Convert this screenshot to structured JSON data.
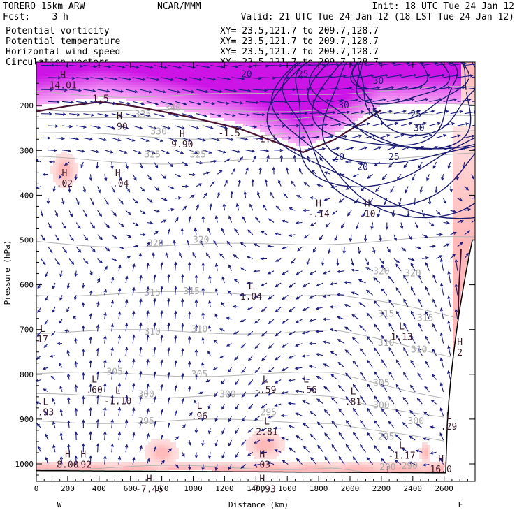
{
  "header": {
    "model": "TORERO  15km ARW",
    "center": "NCAR/MMM",
    "init": "Init: 18 UTC Tue 24 Jan 12",
    "fcst": "Fcst:    3 h",
    "valid": "Valid: 21 UTC Tue 24 Jan 12 (18 LST Tue 24 Jan 12)"
  },
  "fields": [
    {
      "name": "Potential vorticity",
      "xy": "XY=  23.5,121.7 to 209.7,128.7",
      "color": "#000000"
    },
    {
      "name": "Potential temperature",
      "xy": "XY=  23.5,121.7 to 209.7,128.7",
      "color": "#b4b4b4"
    },
    {
      "name": "Horizontal wind speed",
      "xy": "XY=  23.5,121.7 to 209.7,128.7",
      "color": "#1a1a6e"
    },
    {
      "name": "Circulation vectors",
      "xy": "XY=  23.5,121.7 to 209.7,128.7",
      "color": "#000000"
    }
  ],
  "chart_data": {
    "type": "cross-section",
    "xlabel": "Distance (km)",
    "ylabel": "Pressure (hPa)",
    "xlim": [
      0,
      2800
    ],
    "ylim_pressure": [
      1030,
      100
    ],
    "x_ticks": [
      "0",
      "200",
      "400",
      "600",
      "800",
      "1000",
      "1200",
      "1400",
      "1600",
      "1800",
      "2000",
      "2200",
      "2400",
      "2600"
    ],
    "y_ticks": [
      "200",
      "300",
      "400",
      "500",
      "600",
      "700",
      "800",
      "900",
      "1000"
    ],
    "endpoints": {
      "left": "W",
      "right": "E"
    },
    "theta_labels": [
      {
        "text": "340",
        "x": 870,
        "p": 205
      },
      {
        "text": "335",
        "x": 680,
        "p": 220
      },
      {
        "text": "330",
        "x": 780,
        "p": 258
      },
      {
        "text": "325",
        "x": 740,
        "p": 310
      },
      {
        "text": "325",
        "x": 1030,
        "p": 310
      },
      {
        "text": "320",
        "x": 760,
        "p": 508
      },
      {
        "text": "320",
        "x": 1050,
        "p": 500
      },
      {
        "text": "320",
        "x": 2200,
        "p": 570
      },
      {
        "text": "320",
        "x": 2400,
        "p": 575
      },
      {
        "text": "315",
        "x": 740,
        "p": 618
      },
      {
        "text": "315",
        "x": 990,
        "p": 615
      },
      {
        "text": "315",
        "x": 2230,
        "p": 665
      },
      {
        "text": "315",
        "x": 2480,
        "p": 675
      },
      {
        "text": "310",
        "x": 740,
        "p": 705
      },
      {
        "text": "310",
        "x": 1040,
        "p": 700
      },
      {
        "text": "310",
        "x": 2230,
        "p": 730
      },
      {
        "text": "310",
        "x": 2440,
        "p": 745
      },
      {
        "text": "305",
        "x": 500,
        "p": 795
      },
      {
        "text": "305",
        "x": 1040,
        "p": 800
      },
      {
        "text": "305",
        "x": 2200,
        "p": 820
      },
      {
        "text": "300",
        "x": 700,
        "p": 845
      },
      {
        "text": "300",
        "x": 1220,
        "p": 845
      },
      {
        "text": "300",
        "x": 2200,
        "p": 870
      },
      {
        "text": "300",
        "x": 2420,
        "p": 905
      },
      {
        "text": "295",
        "x": 700,
        "p": 905
      },
      {
        "text": "295",
        "x": 1480,
        "p": 885
      },
      {
        "text": "295",
        "x": 2230,
        "p": 940
      },
      {
        "text": "290",
        "x": 2240,
        "p": 1008
      },
      {
        "text": "290",
        "x": 2380,
        "p": 1005
      }
    ],
    "speed_labels": [
      {
        "text": "20",
        "x": 1340,
        "p": 130
      },
      {
        "text": "25",
        "x": 1700,
        "p": 130
      },
      {
        "text": "30",
        "x": 2180,
        "p": 145
      },
      {
        "text": "30",
        "x": 1960,
        "p": 200
      },
      {
        "text": "15",
        "x": 2140,
        "p": 215
      },
      {
        "text": "25",
        "x": 2420,
        "p": 220
      },
      {
        "text": "30",
        "x": 2440,
        "p": 250
      },
      {
        "text": "20",
        "x": 1930,
        "p": 315
      },
      {
        "text": "25",
        "x": 2280,
        "p": 315
      },
      {
        "text": "20",
        "x": 2080,
        "p": 338
      }
    ],
    "pv_labels": [
      {
        "text": "1.5",
        "x": 410,
        "p": 185
      },
      {
        "text": "-1.5",
        "x": 1230,
        "p": 262
      },
      {
        "text": "-1.5",
        "x": 1460,
        "p": 275
      }
    ],
    "extrema": [
      {
        "kind": "H",
        "value": "14.01",
        "x": 170,
        "p": 138
      },
      {
        "kind": "H",
        "value": ".02",
        "x": 180,
        "p": 357
      },
      {
        "kind": "H",
        "value": "-.04",
        "x": 520,
        "p": 357
      },
      {
        "kind": "H",
        "value": "9.90",
        "x": 930,
        "p": 270
      },
      {
        "kind": "H",
        "value": ".90",
        "x": 530,
        "p": 230
      },
      {
        "kind": "H",
        "value": "-.14",
        "x": 1800,
        "p": 425
      },
      {
        "kind": "H",
        "value": ".10",
        "x": 2110,
        "p": 425
      },
      {
        "kind": "L",
        "value": "1.04",
        "x": 1370,
        "p": 610
      },
      {
        "kind": "L",
        "value": "17",
        "x": 40,
        "p": 705
      },
      {
        "kind": "L",
        "value": "1.13",
        "x": 2330,
        "p": 700
      },
      {
        "kind": "H",
        "value": "2",
        "x": 2700,
        "p": 735
      },
      {
        "kind": "L",
        "value": ".60",
        "x": 370,
        "p": 818
      },
      {
        "kind": "L",
        "value": "-1.10",
        "x": 520,
        "p": 843
      },
      {
        "kind": "L",
        "value": "-.59",
        "x": 1460,
        "p": 818
      },
      {
        "kind": "L",
        "value": "-.56",
        "x": 1720,
        "p": 818
      },
      {
        "kind": "L",
        "value": ".81",
        "x": 2020,
        "p": 845
      },
      {
        "kind": "L",
        "value": ".96",
        "x": 1040,
        "p": 877
      },
      {
        "kind": "L",
        "value": ".93",
        "x": 60,
        "p": 868
      },
      {
        "kind": "L",
        "value": "2.81",
        "x": 1470,
        "p": 912
      },
      {
        "kind": "L",
        "value": ".29",
        "x": 2630,
        "p": 900
      },
      {
        "kind": "L",
        "value": "-1.17",
        "x": 2330,
        "p": 965
      },
      {
        "kind": "H",
        "value": "8.00",
        "x": 200,
        "p": 985
      },
      {
        "kind": "H",
        "value": ".92",
        "x": 300,
        "p": 985
      },
      {
        "kind": "H",
        "value": ".03",
        "x": 1440,
        "p": 985
      },
      {
        "kind": "H",
        "value": "16.0",
        "x": 2580,
        "p": 995
      },
      {
        "kind": "H",
        "value": "-7.46",
        "x": 720,
        "p": 1040
      },
      {
        "kind": "H",
        "value": "-7.93",
        "x": 1440,
        "p": 1040
      },
      {
        "kind": "L",
        "value": "",
        "x": 2250,
        "p": 1020
      }
    ],
    "pv_threshold": 1.5,
    "wind_max_ms": 35
  }
}
